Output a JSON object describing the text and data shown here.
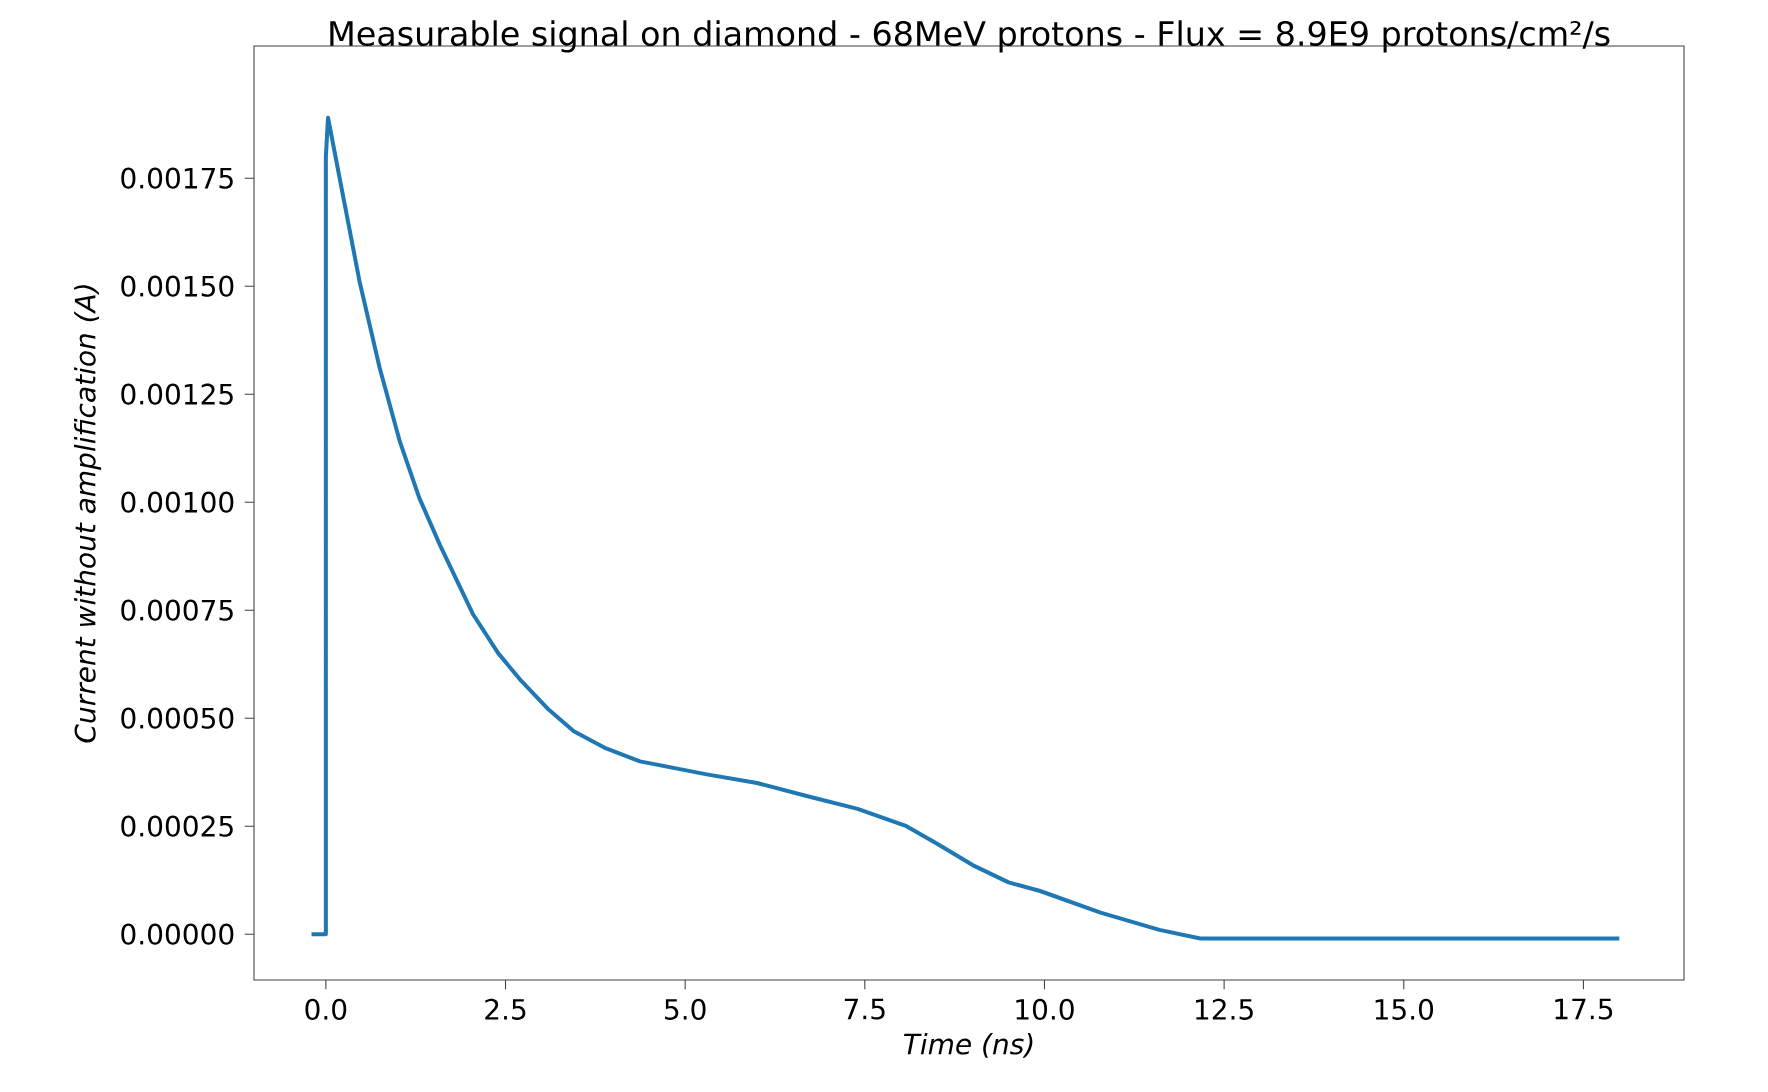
{
  "chart_data": {
    "type": "line",
    "title": "Measurable signal on diamond - 68MeV protons - Flux = 8.9E9 protons/cm²/s",
    "xlabel": "*Time (ns)*",
    "ylabel": "*Current without amplification (A)*",
    "xlim": [
      -1.0,
      18.9
    ],
    "ylim": [
      -0.000106,
      0.002056
    ],
    "xticks": [
      {
        "value": 0,
        "label": "0.0"
      },
      {
        "value": 2.5,
        "label": "2.5"
      },
      {
        "value": 5,
        "label": "5.0"
      },
      {
        "value": 7.5,
        "label": "7.5"
      },
      {
        "value": 10,
        "label": "10.0"
      },
      {
        "value": 12.5,
        "label": "12.5"
      },
      {
        "value": 15,
        "label": "15.0"
      },
      {
        "value": 17.5,
        "label": "17.5"
      }
    ],
    "yticks": [
      {
        "value": 0,
        "label": "0.00000"
      },
      {
        "value": 0.00025,
        "label": "0.00025"
      },
      {
        "value": 0.0005,
        "label": "0.00050"
      },
      {
        "value": 0.00075,
        "label": "0.00075"
      },
      {
        "value": 0.001,
        "label": "0.00100"
      },
      {
        "value": 0.00125,
        "label": "0.00125"
      },
      {
        "value": 0.0015,
        "label": "0.00150"
      },
      {
        "value": 0.00175,
        "label": "0.00175"
      }
    ],
    "grid": false,
    "marker": "none",
    "line_style": "solid",
    "series": [
      {
        "color": "#1f77b4",
        "x": [
          -0.2,
          0.0,
          0.0,
          0.03,
          0.25,
          0.47,
          0.75,
          1.03,
          1.3,
          1.59,
          2.05,
          2.4,
          2.7,
          3.1,
          3.45,
          3.9,
          4.37,
          5.3,
          6.0,
          6.69,
          7.4,
          8.08,
          8.5,
          9.0,
          9.5,
          9.94,
          10.78,
          11.6,
          12.17,
          12.5,
          15.0,
          18.0
        ],
        "values": [
          0.0,
          0.0,
          0.0018,
          0.00189,
          0.0017,
          0.00151,
          0.00131,
          0.00114,
          0.00101,
          0.0009,
          0.00074,
          0.00065,
          0.00059,
          0.00052,
          0.00047,
          0.00043,
          0.0004,
          0.00037,
          0.00035,
          0.00032,
          0.00029,
          0.00025,
          0.00021,
          0.00016,
          0.00012,
          0.0001,
          5e-05,
          1e-05,
          -1e-05,
          -1e-05,
          -1e-05,
          -1e-05
        ]
      }
    ]
  }
}
